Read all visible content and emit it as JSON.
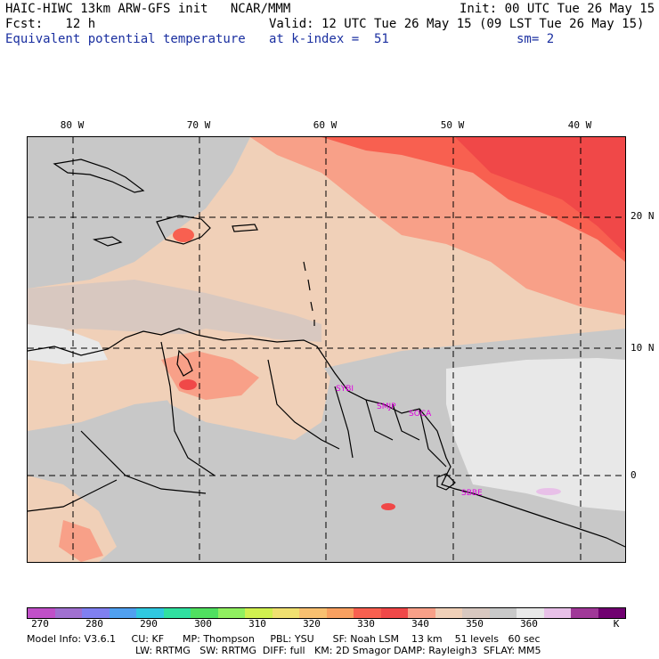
{
  "header": {
    "title_left": "HAIC-HIWC 13km ARW-GFS init   NCAR/MMM",
    "init": "Init: 00 UTC Tue 26 May 15",
    "fcst": "Fcst:   12 h",
    "valid": "Valid: 12 UTC Tue 26 May 15 (09 LST Tue 26 May 15)",
    "field": "Equivalent potential temperature",
    "level": "at k-index =  51",
    "smooth": "sm= 2"
  },
  "lon_labels": [
    "80 W",
    "70 W",
    "60 W",
    "50 W",
    "40 W"
  ],
  "lat_labels": [
    "20 N",
    "10 N",
    "0"
  ],
  "cities": [
    "SYBI",
    "SMJP",
    "SOCA",
    "SBBE"
  ],
  "colorbar": {
    "colors": [
      "#c050c8",
      "#a070d0",
      "#8080f0",
      "#50a0f0",
      "#30c8e0",
      "#30e0a0",
      "#50e060",
      "#90f060",
      "#d0f050",
      "#f0e070",
      "#f8c070",
      "#f8a060",
      "#f86050",
      "#f04848",
      "#f8a088",
      "#f0d0b8",
      "#d8c8c0",
      "#c8c8c8",
      "#e8e8e8",
      "#e8c0e8",
      "#a03898",
      "#700070"
    ],
    "labels": [
      "270",
      "280",
      "290",
      "300",
      "310",
      "320",
      "330",
      "340",
      "350",
      "360"
    ],
    "unit": "K"
  },
  "footer": {
    "line1": "Model Info: V3.6.1     CU: KF      MP: Thompson     PBL: YSU      SF: Noah LSM    13 km    51 levels   60 sec",
    "line2": "LW: RRTMG   SW: RRTMG  DIFF: full   KM: 2D Smagor DAMP: Rayleigh3  SFLAY: MM5"
  }
}
